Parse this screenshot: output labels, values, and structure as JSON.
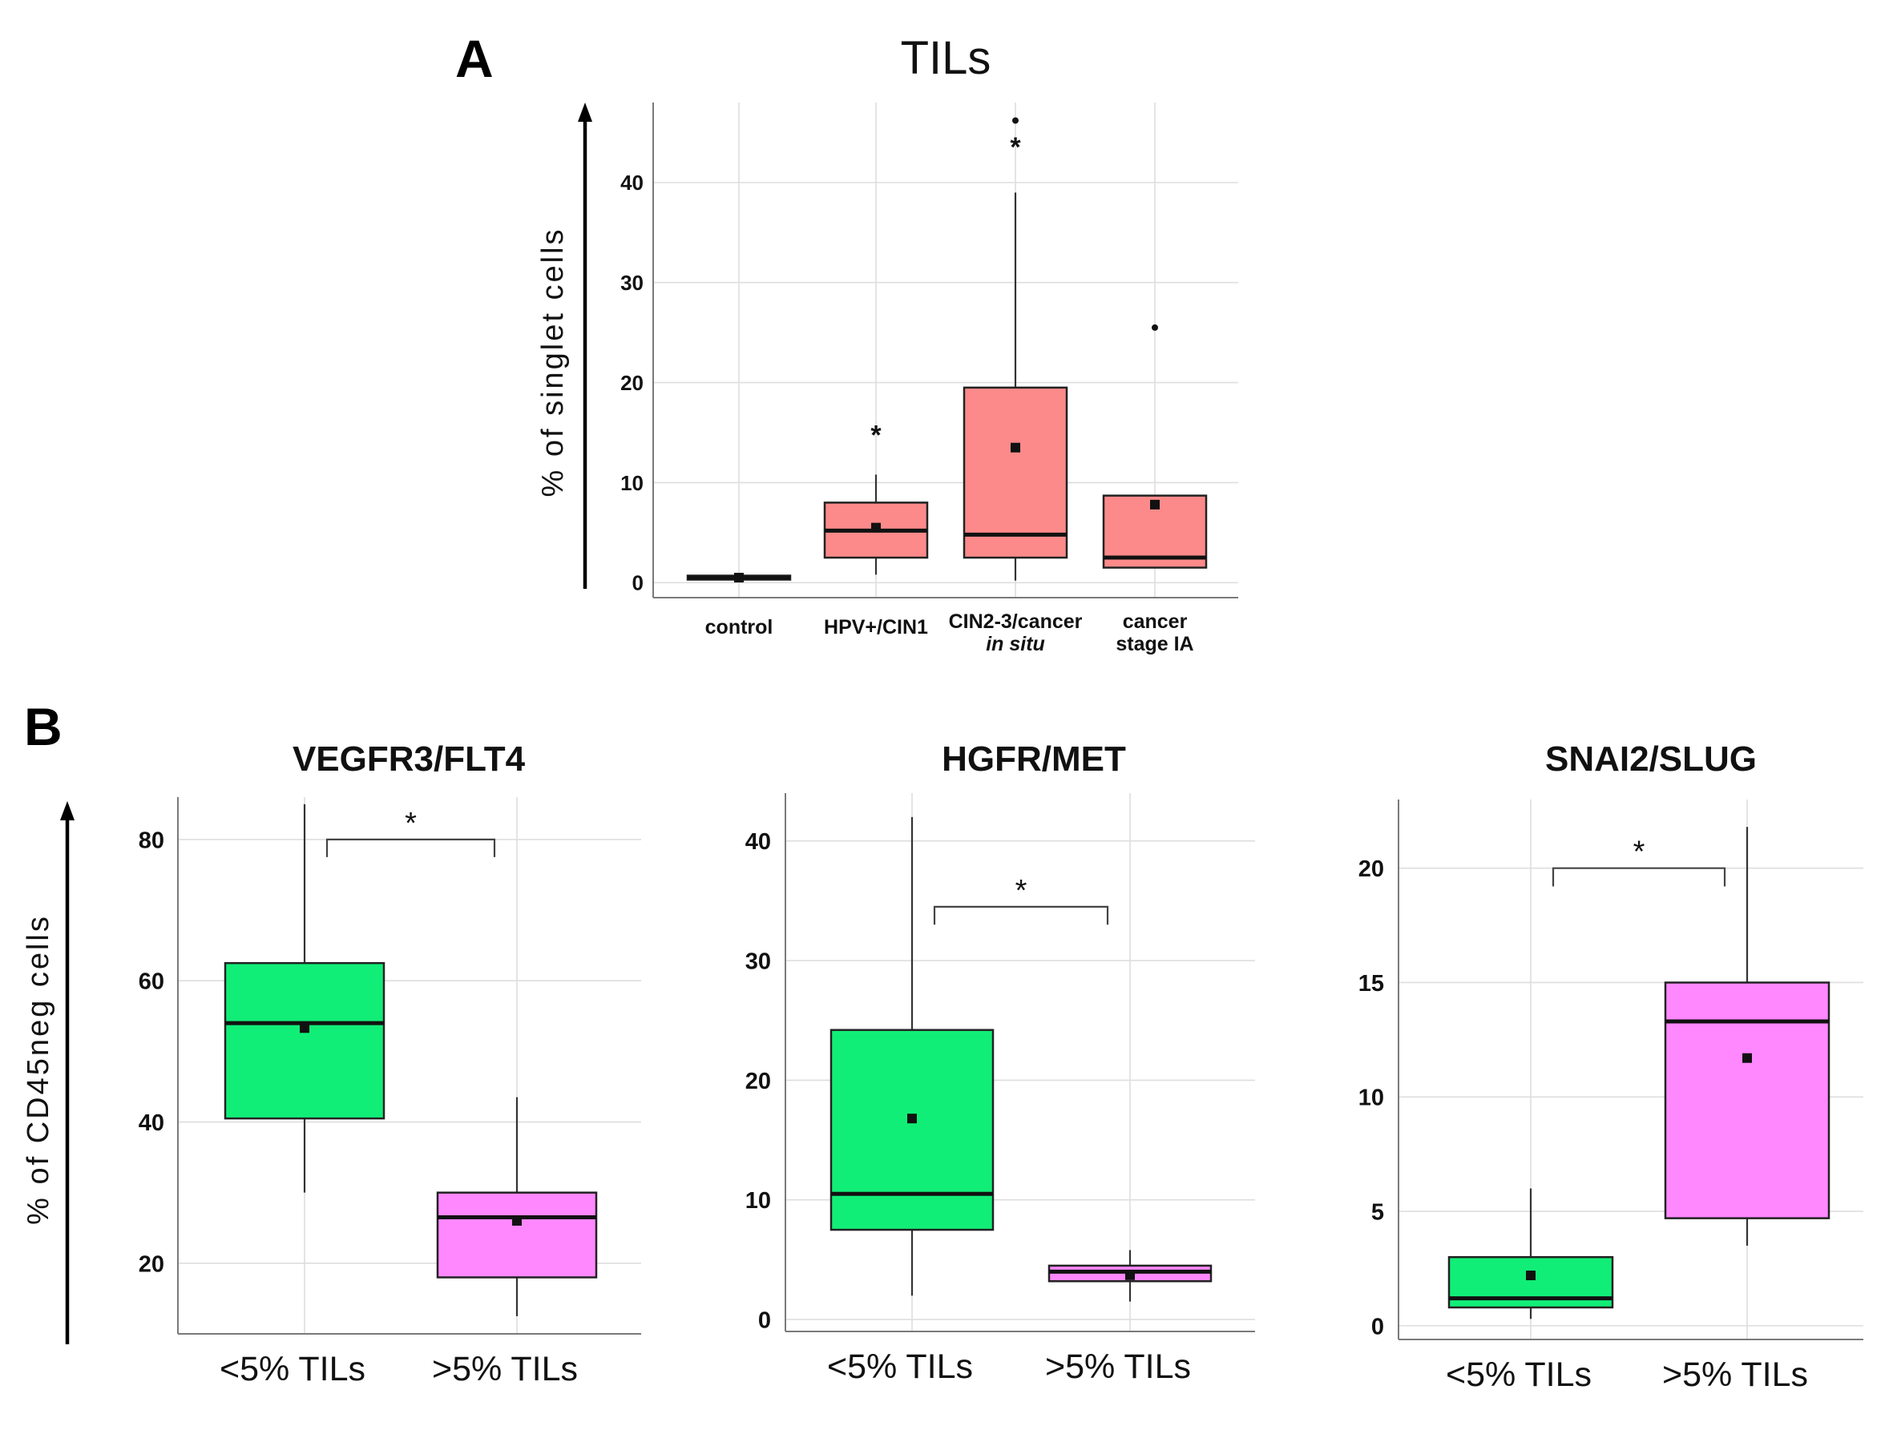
{
  "panels": {
    "a": {
      "letter": "A"
    },
    "b": {
      "letter": "B",
      "ylabel": "% of CD45neg cells"
    }
  },
  "chart_data": [
    {
      "type": "box",
      "panel": "A",
      "title": "TILs",
      "ylabel": "% of singlet cells",
      "xlabel": "",
      "ylim": [
        -1.5,
        48
      ],
      "yticks": [
        0,
        10,
        20,
        30,
        40
      ],
      "grid": true,
      "categories": [
        "control",
        "HPV+/CIN1",
        "CIN2-3/cancer in situ",
        "cancer stage IA"
      ],
      "category_labels": [
        {
          "line1": "control",
          "line2": "",
          "line2_italic": false
        },
        {
          "line1": "HPV+/CIN1",
          "line2": "",
          "line2_italic": false
        },
        {
          "line1": "CIN2-3/cancer",
          "line2": "in situ",
          "line2_italic": true
        },
        {
          "line1": "cancer",
          "line2": "stage IA",
          "line2_italic": false
        }
      ],
      "box_color": "#fc8a8a",
      "boxes": [
        {
          "q1": 0.3,
          "median": 0.5,
          "q3": 0.7,
          "whisker_low": 0.3,
          "whisker_high": 0.7,
          "mean": 0.5,
          "outliers": [],
          "extremes": []
        },
        {
          "q1": 2.5,
          "median": 5.2,
          "q3": 8.0,
          "whisker_low": 0.8,
          "whisker_high": 10.8,
          "mean": 5.5,
          "outliers": [
            15.2
          ],
          "extremes": []
        },
        {
          "q1": 2.5,
          "median": 4.8,
          "q3": 19.5,
          "whisker_low": 0.2,
          "whisker_high": 39.0,
          "mean": 13.5,
          "outliers": [
            44.0
          ],
          "extremes": [
            46.2
          ]
        },
        {
          "q1": 1.5,
          "median": 2.5,
          "q3": 8.7,
          "whisker_low": 1.5,
          "whisker_high": 8.7,
          "mean": 7.8,
          "outliers": [],
          "extremes": [
            25.5
          ]
        }
      ]
    },
    {
      "type": "box",
      "panel": "B",
      "title": "VEGFR3/FLT4",
      "ylim": [
        10,
        86
      ],
      "yticks": [
        20,
        40,
        60,
        80
      ],
      "grid": true,
      "categories": [
        "<5% TILs",
        ">5% TILs"
      ],
      "colors": [
        "#11ee77",
        "#ff88ff"
      ],
      "boxes": [
        {
          "q1": 40.5,
          "median": 54.0,
          "q3": 62.5,
          "whisker_low": 30.0,
          "whisker_high": 85.0,
          "mean": 53.3
        },
        {
          "q1": 18.0,
          "median": 26.5,
          "q3": 30.0,
          "whisker_low": 12.5,
          "whisker_high": 43.5,
          "mean": 26.0
        }
      ],
      "significance": {
        "label": "*",
        "y": 80.0,
        "tick_drop": 2.5
      }
    },
    {
      "type": "box",
      "panel": "B",
      "title": "HGFR/MET",
      "ylim": [
        -1,
        44
      ],
      "yticks": [
        0,
        10,
        20,
        30,
        40
      ],
      "grid": true,
      "categories": [
        "<5% TILs",
        ">5% TILs"
      ],
      "colors": [
        "#11ee77",
        "#ff88ff"
      ],
      "boxes": [
        {
          "q1": 7.5,
          "median": 10.5,
          "q3": 24.2,
          "whisker_low": 2.0,
          "whisker_high": 42.0,
          "mean": 16.8
        },
        {
          "q1": 3.2,
          "median": 4.0,
          "q3": 4.5,
          "whisker_low": 1.5,
          "whisker_high": 5.8,
          "mean": 3.7
        }
      ],
      "significance": {
        "label": "*",
        "y": 34.5,
        "tick_drop": 1.5
      }
    },
    {
      "type": "box",
      "panel": "B",
      "title": "SNAI2/SLUG",
      "ylim": [
        -0.6,
        23
      ],
      "yticks": [
        0,
        5,
        10,
        15,
        20
      ],
      "grid": true,
      "categories": [
        "<5% TILs",
        ">5% TILs"
      ],
      "colors": [
        "#11ee77",
        "#ff88ff"
      ],
      "boxes": [
        {
          "q1": 0.8,
          "median": 1.2,
          "q3": 3.0,
          "whisker_low": 0.3,
          "whisker_high": 6.0,
          "mean": 2.2
        },
        {
          "q1": 4.7,
          "median": 13.3,
          "q3": 15.0,
          "whisker_low": 3.5,
          "whisker_high": 21.8,
          "mean": 11.7
        }
      ],
      "significance": {
        "label": "*",
        "y": 20.0,
        "tick_drop": 0.8
      }
    }
  ]
}
